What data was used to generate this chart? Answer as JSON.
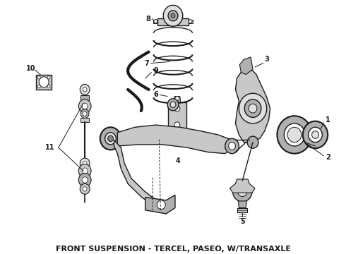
{
  "title": "FRONT SUSPENSION - TERCEL, PASEO, W/TRANSAXLE",
  "title_fontsize": 8,
  "title_fontweight": "bold",
  "bg_color": "#ffffff",
  "line_color": "#1a1a1a",
  "fig_width": 4.9,
  "fig_height": 3.6,
  "dpi": 100,
  "gray_fill": "#c8c8c8",
  "gray_mid": "#b0b0b0",
  "gray_light": "#e0e0e0",
  "gray_dark": "#888888"
}
